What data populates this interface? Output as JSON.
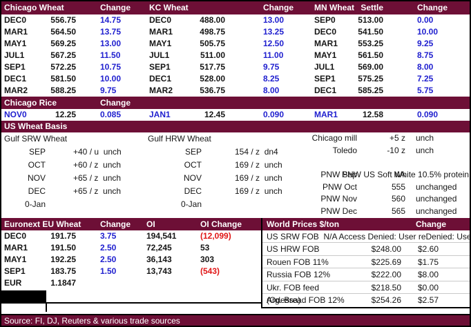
{
  "colors": {
    "maroon": "#6d0f36",
    "blue": "#2020cf",
    "red": "#e01515"
  },
  "futures": {
    "tables": [
      {
        "title": "Chicago Wheat",
        "settle_header": "",
        "change_header": "Change",
        "rows": [
          {
            "month": "DEC0",
            "settle": "556.75",
            "change": "14.75"
          },
          {
            "month": "MAR1",
            "settle": "564.50",
            "change": "13.75"
          },
          {
            "month": "MAY1",
            "settle": "569.25",
            "change": "13.00"
          },
          {
            "month": "JUL1",
            "settle": "567.25",
            "change": "11.50"
          },
          {
            "month": "SEP1",
            "settle": "572.25",
            "change": "10.75"
          },
          {
            "month": "DEC1",
            "settle": "581.50",
            "change": "10.00"
          },
          {
            "month": "MAR2",
            "settle": "588.25",
            "change": "9.75"
          }
        ]
      },
      {
        "title": "KC Wheat",
        "settle_header": "",
        "change_header": "Change",
        "rows": [
          {
            "month": "DEC0",
            "settle": "488.00",
            "change": "13.00"
          },
          {
            "month": "MAR1",
            "settle": "498.75",
            "change": "13.25"
          },
          {
            "month": "MAY1",
            "settle": "505.75",
            "change": "12.50"
          },
          {
            "month": "JUL1",
            "settle": "511.00",
            "change": "11.00"
          },
          {
            "month": "SEP1",
            "settle": "517.75",
            "change": "9.75"
          },
          {
            "month": "DEC1",
            "settle": "528.00",
            "change": "8.25"
          },
          {
            "month": "MAR2",
            "settle": "536.75",
            "change": "8.00"
          }
        ]
      },
      {
        "title": "MN Wheat",
        "settle_header": "Settle",
        "change_header": "Change",
        "rows": [
          {
            "month": "SEP0",
            "settle": "513.00",
            "change": "0.00"
          },
          {
            "month": "DEC0",
            "settle": "541.50",
            "change": "10.00"
          },
          {
            "month": "MAR1",
            "settle": "553.25",
            "change": "9.25"
          },
          {
            "month": "MAY1",
            "settle": "561.50",
            "change": "8.75"
          },
          {
            "month": "JUL1",
            "settle": "569.00",
            "change": "8.00"
          },
          {
            "month": "SEP1",
            "settle": "575.25",
            "change": "7.25"
          },
          {
            "month": "DEC1",
            "settle": "585.25",
            "change": "5.75"
          }
        ]
      }
    ]
  },
  "rice": {
    "title": "Chicago Rice",
    "change_header": "Change",
    "contracts": [
      {
        "month": "NOV0",
        "price": "12.25",
        "change": "0.085"
      },
      {
        "month": "JAN1",
        "price": "12.45",
        "change": "0.090"
      },
      {
        "month": "MAR1",
        "price": "12.58",
        "change": "0.090"
      }
    ]
  },
  "basis": {
    "title": "US Wheat Basis",
    "srw": {
      "title": "Gulf SRW Wheat",
      "rows": [
        {
          "month": "SEP",
          "value": "+40 / u  unch"
        },
        {
          "month": "OCT",
          "value": "+60 / z  unch"
        },
        {
          "month": "NOV",
          "value": "+65 / z  unch"
        },
        {
          "month": "DEC",
          "value": "+65 / z  unch"
        },
        {
          "month": "0-Jan",
          "value": ""
        }
      ]
    },
    "hrw": {
      "title": "Gulf HRW Wheat",
      "rows": [
        {
          "month": "SEP",
          "value": "154 / z  dn4"
        },
        {
          "month": "OCT",
          "value": "169 / z  unch"
        },
        {
          "month": "NOV",
          "value": "169 / z  unch"
        },
        {
          "month": "DEC",
          "value": "169 / z  unch"
        },
        {
          "month": "0-Jan",
          "value": ""
        }
      ]
    },
    "domestic": {
      "rows": [
        {
          "label": "Chicago mill",
          "value": "+5 z",
          "note": "unch"
        },
        {
          "label": "Toledo",
          "value": "-10 z",
          "note": "unch"
        },
        {
          "label": "PNW US Soft White 10.5% protein",
          "value": "",
          "note": "",
          "wide": true
        },
        {
          "label": "PNW Sep",
          "value": "NA",
          "note": ""
        },
        {
          "label": "PNW Oct",
          "value": "555",
          "note": "unchanged"
        },
        {
          "label": "PNW Nov",
          "value": "560",
          "note": "unchanged"
        },
        {
          "label": "PNW Dec",
          "value": "565",
          "note": "unchanged"
        }
      ]
    }
  },
  "euronext": {
    "title": "Euronext EU Wheat",
    "change_header": "Change",
    "oi_header": "OI",
    "oi_change_header": "OI Change",
    "rows": [
      {
        "month": "DEC0",
        "price": "191.75",
        "change": "3.75",
        "oi": "194,541",
        "oi_change": "(12,099)"
      },
      {
        "month": "MAR1",
        "price": "191.50",
        "change": "2.50",
        "oi": "72,245",
        "oi_change": "53"
      },
      {
        "month": "MAY1",
        "price": "192.25",
        "change": "2.50",
        "oi": "36,143",
        "oi_change": "303"
      },
      {
        "month": "SEP1",
        "price": "183.75",
        "change": "1.50",
        "oi": "13,743",
        "oi_change": "(543)"
      }
    ],
    "eur_label": "EUR",
    "eur_value": "1.1847"
  },
  "world": {
    "title": "World Prices $/ton",
    "change_header": "Change",
    "access_row": "US SRW FOB  N/A Access Denied: User reDenied: User re",
    "rows": [
      {
        "label": "US HRW FOB",
        "price": "$248.00",
        "change": "$2.60"
      },
      {
        "label": "Rouen FOB 11%",
        "price": "$225.69",
        "change": "$1.75"
      },
      {
        "label": "Russia FOB 12%",
        "price": "$222.00",
        "change": "$8.00"
      },
      {
        "label": "Ukr. FOB feed (Odessa)",
        "price": "$218.50",
        "change": "$0.00"
      },
      {
        "label": "Arg. Bread FOB 12%",
        "price": "$254.26",
        "change": "$2.57"
      }
    ]
  },
  "source": "Source: FI, DJ, Reuters & various trade sources"
}
